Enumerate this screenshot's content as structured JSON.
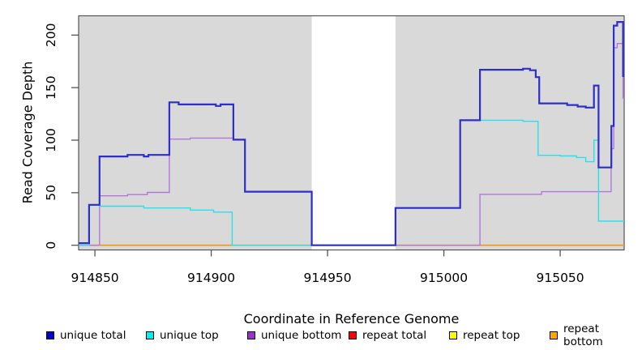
{
  "chart_data": {
    "type": "line",
    "subtype": "step",
    "title": "",
    "xlabel": "Coordinate in Reference Genome",
    "ylabel": "Read Coverage Depth",
    "xlim": [
      914843,
      915077.5
    ],
    "ylim": [
      0,
      218
    ],
    "x_ticks": [
      "914850",
      "914900",
      "914950",
      "915000",
      "915050"
    ],
    "x_tick_values": [
      914850,
      914900,
      914950,
      915000,
      915050
    ],
    "y_ticks": [
      "0",
      "50",
      "100",
      "150",
      "200"
    ],
    "y_tick_values": [
      0,
      50,
      100,
      150,
      200
    ],
    "grid": false,
    "plot_background": "#d9d9d9",
    "axis_color": "#555555",
    "masked_region": {
      "x_start": 914943.2,
      "x_end": 914979.2,
      "color": "#ffffff"
    },
    "series": [
      {
        "name": "repeat total",
        "color": "#e00000",
        "line_width": 1.4,
        "points": [
          [
            914843,
            0
          ]
        ]
      },
      {
        "name": "repeat top",
        "color": "#ffeb00",
        "line_width": 1.4,
        "points": [
          [
            914843,
            0
          ]
        ]
      },
      {
        "name": "repeat bottom",
        "color": "#ff9405",
        "line_width": 1.6,
        "points": [
          [
            914843,
            0
          ]
        ]
      },
      {
        "name": "unique bottom",
        "color": "#b476dc",
        "line_width": 1.4,
        "points": [
          [
            914843,
            0
          ],
          [
            914852,
            47
          ],
          [
            914864,
            48.2
          ],
          [
            914872.5,
            50.3
          ],
          [
            914882,
            101
          ],
          [
            914891,
            102
          ],
          [
            914909.5,
            100.5
          ],
          [
            914914.5,
            51
          ],
          [
            914943.2,
            0
          ],
          [
            915015.5,
            48.5
          ],
          [
            915042,
            51
          ],
          [
            915071.9,
            92
          ],
          [
            915073,
            188
          ],
          [
            915074.5,
            192
          ],
          [
            915077,
            140
          ]
        ]
      },
      {
        "name": "unique top",
        "color": "#25e2ec",
        "line_width": 1.4,
        "points": [
          [
            914843,
            0
          ],
          [
            914847.5,
            38
          ],
          [
            914852,
            37.2
          ],
          [
            914871,
            35.5
          ],
          [
            914891,
            33.5
          ],
          [
            914901,
            31.5
          ],
          [
            914909,
            0
          ],
          [
            914979.2,
            35.3
          ],
          [
            915007,
            119
          ],
          [
            915034,
            118
          ],
          [
            915040.5,
            85.6
          ],
          [
            915050,
            85
          ],
          [
            915057,
            83.5
          ],
          [
            915061,
            79.5
          ],
          [
            915064.5,
            100
          ],
          [
            915066.5,
            23
          ]
        ]
      },
      {
        "name": "unique total",
        "color": "#2e2ec8",
        "line_width": 2.2,
        "points": [
          [
            914843,
            2
          ],
          [
            914847.5,
            38.5
          ],
          [
            914852,
            84.5
          ],
          [
            914864,
            86
          ],
          [
            914871,
            84.5
          ],
          [
            914873,
            86
          ],
          [
            914882,
            136
          ],
          [
            914886,
            134
          ],
          [
            914902,
            132.5
          ],
          [
            914904,
            134
          ],
          [
            914909.5,
            100.5
          ],
          [
            914914.5,
            51
          ],
          [
            914943.2,
            0
          ],
          [
            914979.2,
            35.5
          ],
          [
            915007,
            119
          ],
          [
            915015.5,
            167
          ],
          [
            915034,
            168
          ],
          [
            915037,
            166.5
          ],
          [
            915039.5,
            160
          ],
          [
            915041,
            135
          ],
          [
            915053,
            133.5
          ],
          [
            915057.5,
            132
          ],
          [
            915061,
            131
          ],
          [
            915064.5,
            152
          ],
          [
            915066.5,
            74
          ],
          [
            915072,
            113.5
          ],
          [
            915073,
            209
          ],
          [
            915074.5,
            212.5
          ],
          [
            915077,
            161
          ]
        ]
      }
    ],
    "legend": [
      {
        "label": "unique total",
        "color": "#0000cd"
      },
      {
        "label": "unique top",
        "color": "#00eeee"
      },
      {
        "label": "unique bottom",
        "color": "#9932cc"
      },
      {
        "label": "repeat total",
        "color": "#ff0000"
      },
      {
        "label": "repeat top",
        "color": "#ffff00"
      },
      {
        "label": "repeat bottom",
        "color": "#ffa500"
      }
    ],
    "legend_position": "bottom"
  }
}
